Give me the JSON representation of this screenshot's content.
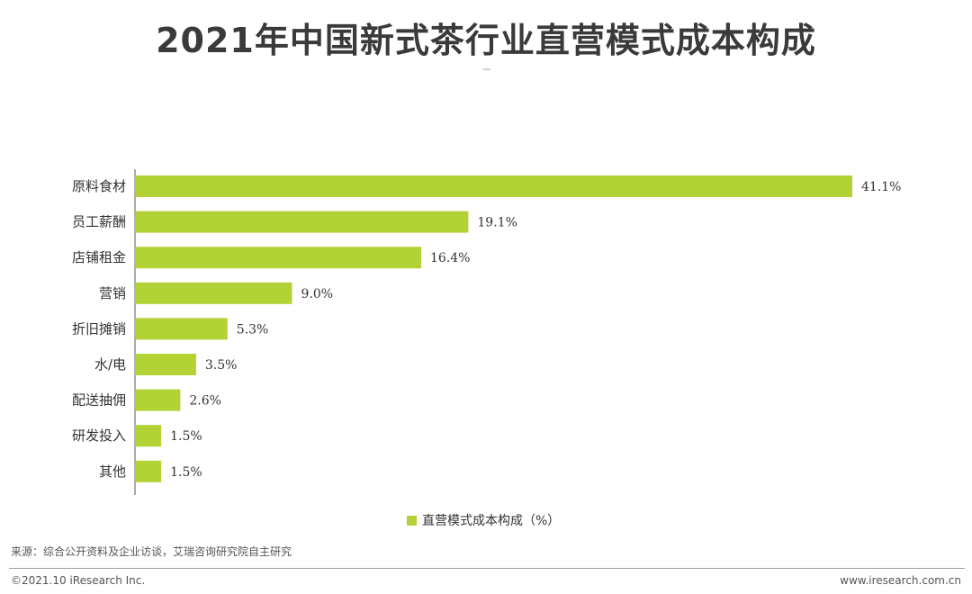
{
  "title": "2021年中国新式茶行业直营模式成本构成",
  "legend_label": "直营模式成本构成（%）",
  "source": "来源：综合公开资料及企业访谈，艾瑞咨询研究院自主研究",
  "copyright": "©2021.10 iResearch Inc.",
  "website": "www.iresearch.com.cn",
  "colors": {
    "bar": "#b2d235",
    "axis": "#555555"
  },
  "chart_data": {
    "type": "bar",
    "orientation": "horizontal",
    "title": "2021年中国新式茶行业直营模式成本构成",
    "categories": [
      "原料食材",
      "员工薪酬",
      "店铺租金",
      "营销",
      "折旧摊销",
      "水/电",
      "配送抽佣",
      "研发投入",
      "其他"
    ],
    "series": [
      {
        "name": "直营模式成本构成（%）",
        "values": [
          41.1,
          19.1,
          16.4,
          9.0,
          5.3,
          3.5,
          2.6,
          1.5,
          1.5
        ],
        "labels": [
          "41.1%",
          "19.1%",
          "16.4%",
          "9.0%",
          "5.3%",
          "3.5%",
          "2.6%",
          "1.5%",
          "1.5%"
        ]
      }
    ],
    "xlim": [
      0,
      41.1
    ],
    "grid": false,
    "legend_position": "bottom"
  }
}
